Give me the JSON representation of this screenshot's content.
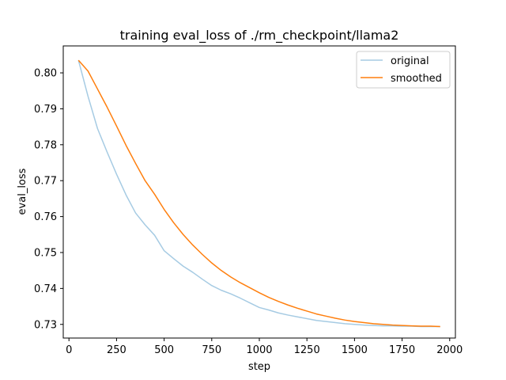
{
  "chart_data": {
    "type": "line",
    "title": "training eval_loss of ./rm_checkpoint/llama2",
    "xlabel": "step",
    "ylabel": "eval_loss",
    "xlim": [
      -30,
      2030
    ],
    "ylim": [
      0.7262,
      0.8075
    ],
    "xticks": [
      0,
      250,
      500,
      750,
      1000,
      1250,
      1500,
      1750,
      2000
    ],
    "yticks": [
      0.73,
      0.74,
      0.75,
      0.76,
      0.77,
      0.78,
      0.79,
      0.8
    ],
    "xtick_labels": [
      "0",
      "250",
      "500",
      "750",
      "1000",
      "1250",
      "1500",
      "1750",
      "2000"
    ],
    "ytick_labels": [
      "0.73",
      "0.74",
      "0.75",
      "0.76",
      "0.77",
      "0.78",
      "0.79",
      "0.80"
    ],
    "legend_position": "top-right",
    "grid": false,
    "series": [
      {
        "name": "original",
        "color": "#a6cbe3",
        "x": [
          50,
          100,
          150,
          200,
          250,
          300,
          350,
          400,
          450,
          500,
          550,
          600,
          650,
          700,
          750,
          800,
          850,
          900,
          950,
          1000,
          1050,
          1100,
          1150,
          1200,
          1250,
          1300,
          1350,
          1400,
          1450,
          1500,
          1550,
          1600,
          1650,
          1700,
          1750,
          1800,
          1850,
          1900,
          1950
        ],
        "values": [
          0.8035,
          0.7935,
          0.7845,
          0.778,
          0.7718,
          0.766,
          0.761,
          0.7577,
          0.7548,
          0.7505,
          0.7483,
          0.7462,
          0.7445,
          0.7426,
          0.7408,
          0.7395,
          0.7385,
          0.7373,
          0.736,
          0.7347,
          0.734,
          0.7332,
          0.7326,
          0.7321,
          0.7316,
          0.7311,
          0.7308,
          0.7305,
          0.7302,
          0.73,
          0.7298,
          0.7297,
          0.7296,
          0.7296,
          0.7295,
          0.7295,
          0.7294,
          0.7294,
          0.7294
        ]
      },
      {
        "name": "smoothed",
        "color": "#ff7f0e",
        "x": [
          50,
          100,
          150,
          200,
          250,
          300,
          350,
          400,
          450,
          500,
          550,
          600,
          650,
          700,
          750,
          800,
          850,
          900,
          950,
          1000,
          1050,
          1100,
          1150,
          1200,
          1250,
          1300,
          1350,
          1400,
          1450,
          1500,
          1550,
          1600,
          1650,
          1700,
          1750,
          1800,
          1850,
          1900,
          1950
        ],
        "values": [
          0.8035,
          0.8005,
          0.7955,
          0.7905,
          0.7852,
          0.7798,
          0.7748,
          0.77,
          0.7662,
          0.762,
          0.7583,
          0.755,
          0.7521,
          0.7495,
          0.7471,
          0.745,
          0.7432,
          0.7416,
          0.7402,
          0.7388,
          0.7375,
          0.7364,
          0.7354,
          0.7345,
          0.7337,
          0.7329,
          0.7323,
          0.7317,
          0.7312,
          0.7308,
          0.7305,
          0.7302,
          0.73,
          0.7298,
          0.7297,
          0.7296,
          0.7295,
          0.7295,
          0.7294
        ]
      }
    ]
  }
}
